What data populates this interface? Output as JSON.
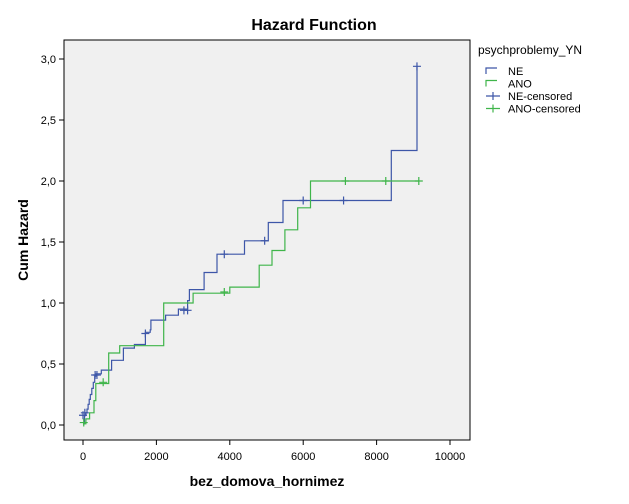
{
  "chart_data": {
    "type": "line",
    "title": "Hazard Function",
    "xlabel": "bez_domova_hornimez",
    "ylabel": "Cum Hazard",
    "xlim": [
      0,
      10000
    ],
    "ylim": [
      0,
      3.0
    ],
    "x_ticks": [
      "0",
      "2000",
      "4000",
      "6000",
      "8000",
      "10000"
    ],
    "y_ticks": [
      "0,0",
      "0,5",
      "1,0",
      "1,5",
      "2,0",
      "2,5",
      "3,0"
    ],
    "legend_title": "psychproblemy_YN",
    "legend_position": "right",
    "grid": false,
    "series": [
      {
        "name": "NE",
        "color": "#3d56a8",
        "steps": [
          [
            0,
            0.01
          ],
          [
            40,
            0.08
          ],
          [
            80,
            0.1
          ],
          [
            110,
            0.13
          ],
          [
            140,
            0.17
          ],
          [
            170,
            0.21
          ],
          [
            200,
            0.25
          ],
          [
            240,
            0.3
          ],
          [
            280,
            0.35
          ],
          [
            320,
            0.4
          ],
          [
            360,
            0.42
          ],
          [
            500,
            0.45
          ],
          [
            780,
            0.53
          ],
          [
            1100,
            0.63
          ],
          [
            1400,
            0.66
          ],
          [
            1700,
            0.76
          ],
          [
            1830,
            0.78
          ],
          [
            1850,
            0.86
          ],
          [
            2250,
            0.9
          ],
          [
            2600,
            0.95
          ],
          [
            2850,
            1.02
          ],
          [
            2900,
            1.11
          ],
          [
            3300,
            1.25
          ],
          [
            3650,
            1.4
          ],
          [
            4400,
            1.51
          ],
          [
            5050,
            1.66
          ],
          [
            5450,
            1.84
          ],
          [
            7100,
            1.84
          ],
          [
            8400,
            2.25
          ],
          [
            9100,
            2.94
          ]
        ]
      },
      {
        "name": "ANO",
        "color": "#3fb54a",
        "steps": [
          [
            0,
            0.01
          ],
          [
            80,
            0.05
          ],
          [
            180,
            0.1
          ],
          [
            300,
            0.2
          ],
          [
            350,
            0.34
          ],
          [
            700,
            0.59
          ],
          [
            1000,
            0.65
          ],
          [
            1850,
            0.65
          ],
          [
            2200,
            1.0
          ],
          [
            2900,
            1.0
          ],
          [
            3000,
            1.08
          ],
          [
            4000,
            1.13
          ],
          [
            4800,
            1.31
          ],
          [
            5150,
            1.43
          ],
          [
            5500,
            1.6
          ],
          [
            5850,
            1.78
          ],
          [
            6200,
            2.0
          ],
          [
            9150,
            2.0
          ]
        ]
      }
    ],
    "censored": [
      {
        "name": "NE-censored",
        "color": "#3d56a8",
        "points": [
          [
            0,
            0.08
          ],
          [
            50,
            0.1
          ],
          [
            330,
            0.41
          ],
          [
            380,
            0.41
          ],
          [
            1700,
            0.75
          ],
          [
            2750,
            0.94
          ],
          [
            2850,
            0.94
          ],
          [
            3850,
            1.4
          ],
          [
            4950,
            1.51
          ],
          [
            6000,
            1.84
          ],
          [
            7100,
            1.84
          ],
          [
            9100,
            2.94
          ]
        ]
      },
      {
        "name": "ANO-censored",
        "color": "#3fb54a",
        "points": [
          [
            20,
            0.02
          ],
          [
            550,
            0.35
          ],
          [
            3850,
            1.09
          ],
          [
            7150,
            2.0
          ],
          [
            8250,
            2.0
          ],
          [
            9150,
            2.0
          ]
        ]
      }
    ]
  }
}
